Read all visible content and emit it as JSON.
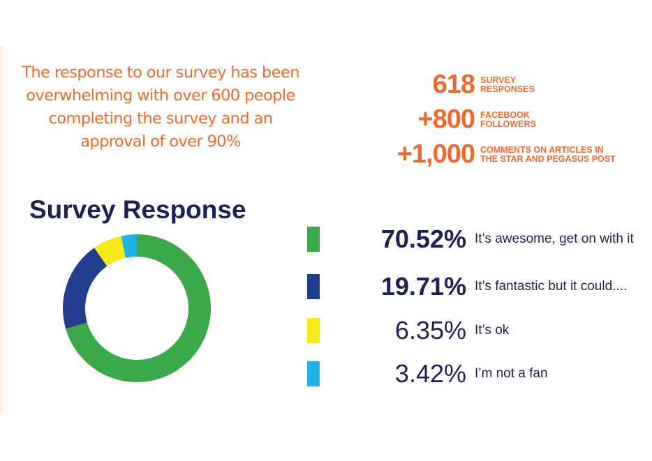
{
  "intro": "The response to our survey has been overwhelming with over 600 people completing the survey and an approval of over 90%",
  "stats": [
    {
      "num": "618",
      "label1": "SURVEY",
      "label2": "RESPONSES"
    },
    {
      "num": "+800",
      "label1": "FACEBOOK",
      "label2": "FOLLOWERS"
    },
    {
      "num": "+1,000",
      "label1": "COMMENTS ON ARTICLES IN",
      "label2": "THE STAR AND PEGASUS POST"
    }
  ],
  "chart_data": {
    "type": "pie",
    "title": "Survey Response",
    "donut": true,
    "categories": [
      "It’s awesome, get on with it",
      "It’s fantastic but it could....",
      "It’s ok",
      "I’m not a fan"
    ],
    "values": [
      70.52,
      19.71,
      6.35,
      3.42
    ],
    "labels": [
      "70.52%",
      "19.71%",
      "6.35%",
      "3.42%"
    ],
    "colors": [
      "#3aa94a",
      "#213e8e",
      "#f8ea16",
      "#1eb3ea"
    ],
    "legend": "right"
  }
}
